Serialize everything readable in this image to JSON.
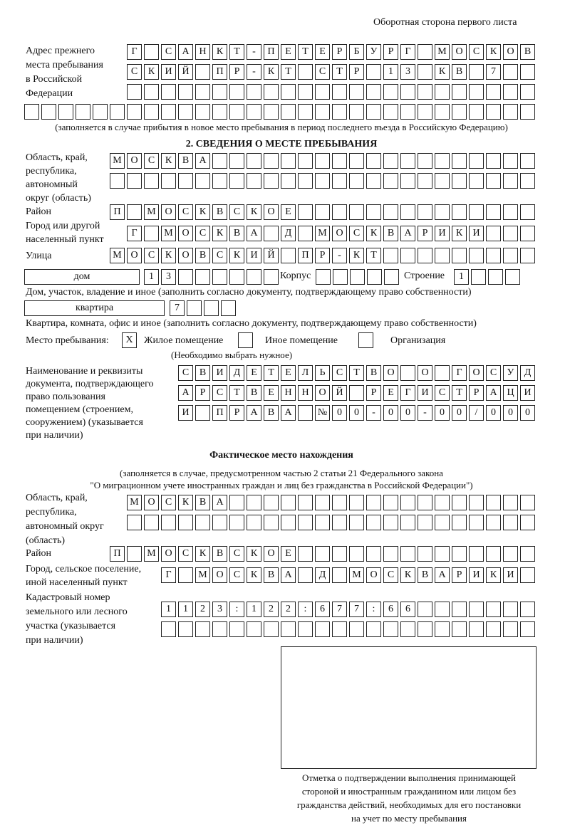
{
  "header": "Оборотная сторона первого листа",
  "prev_address": {
    "label": [
      "Адрес прежнего",
      "места пребывания",
      "в Российской",
      "Федерации"
    ],
    "rows": [
      [
        "Г",
        "",
        "С",
        "А",
        "Н",
        "К",
        "Т",
        "-",
        "П",
        "Е",
        "Т",
        "Е",
        "Р",
        "Б",
        "У",
        "Р",
        "Г",
        "",
        "М",
        "О",
        "С",
        "К",
        "О",
        "В"
      ],
      [
        "С",
        "К",
        "И",
        "Й",
        "",
        "П",
        "Р",
        "-",
        "К",
        "Т",
        "",
        "С",
        "Т",
        "Р",
        "",
        "1",
        "3",
        "",
        "К",
        "В",
        "",
        "7",
        "",
        ""
      ],
      [
        "",
        "",
        "",
        "",
        "",
        "",
        "",
        "",
        "",
        "",
        "",
        "",
        "",
        "",
        "",
        "",
        "",
        "",
        "",
        "",
        "",
        "",
        "",
        ""
      ],
      [
        "",
        "",
        "",
        "",
        "",
        "",
        "",
        "",
        "",
        "",
        "",
        "",
        "",
        "",
        "",
        "",
        "",
        "",
        "",
        "",
        "",
        "",
        "",
        "",
        "",
        "",
        "",
        "",
        "",
        ""
      ]
    ],
    "note": "(заполняется в случае прибытия в новое место пребывания в период последнего въезда в Российскую Федерацию)"
  },
  "section2": {
    "title": "2. СВЕДЕНИЯ О МЕСТЕ ПРЕБЫВАНИЯ",
    "region_label": [
      "Область, край,",
      "республика,",
      "автономный",
      "округ (область)"
    ],
    "region_rows": [
      [
        "М",
        "О",
        "С",
        "К",
        "В",
        "А",
        "",
        "",
        "",
        "",
        "",
        "",
        "",
        "",
        "",
        "",
        "",
        "",
        "",
        "",
        "",
        "",
        "",
        "",
        ""
      ],
      [
        "",
        "",
        "",
        "",
        "",
        "",
        "",
        "",
        "",
        "",
        "",
        "",
        "",
        "",
        "",
        "",
        "",
        "",
        "",
        "",
        "",
        "",
        "",
        "",
        ""
      ]
    ],
    "district_label": "Район",
    "district_row": [
      "П",
      "",
      "М",
      "О",
      "С",
      "К",
      "В",
      "С",
      "К",
      "О",
      "Е",
      "",
      "",
      "",
      "",
      "",
      "",
      "",
      "",
      "",
      "",
      "",
      "",
      "",
      ""
    ],
    "city_label": [
      "Город или другой",
      "населенный пункт"
    ],
    "city_row": [
      "Г",
      "",
      "М",
      "О",
      "С",
      "К",
      "В",
      "А",
      "",
      "Д",
      "",
      "М",
      "О",
      "С",
      "К",
      "В",
      "А",
      "Р",
      "И",
      "К",
      "И",
      "",
      "",
      ""
    ],
    "street_label": "Улица",
    "street_row": [
      "М",
      "О",
      "С",
      "К",
      "О",
      "В",
      "С",
      "К",
      "И",
      "Й",
      "",
      "П",
      "Р",
      "-",
      "К",
      "Т",
      "",
      "",
      "",
      "",
      "",
      "",
      "",
      "",
      ""
    ],
    "house_type": "дом",
    "house_cells": [
      "1",
      "3",
      "",
      "",
      "",
      "",
      "",
      ""
    ],
    "korpus_label": "Корпус",
    "korpus_cells": [
      "",
      "",
      "",
      "",
      ""
    ],
    "building_label": "Строение",
    "building_cells": [
      "1",
      "",
      "",
      ""
    ],
    "house_note": "Дом, участок, владение и иное (заполнить согласно документу, подтверждающему право собственности)",
    "apt_type": "квартира",
    "apt_cells": [
      "7",
      "",
      "",
      ""
    ],
    "apt_note": "Квартира, комната, офис и иное (заполнить согласно документу, подтверждающему право собственности)",
    "stay_label": "Место пребывания:",
    "stay_options": [
      {
        "mark": "X",
        "label": "Жилое помещение"
      },
      {
        "mark": "",
        "label": "Иное помещение"
      },
      {
        "mark": "",
        "label": "Организация"
      }
    ],
    "stay_note": "(Необходимо выбрать нужное)",
    "doc_label": [
      "Наименование и реквизиты",
      "документа, подтверждающего",
      "право пользования",
      "помещением (строением,",
      "сооружением) (указывается",
      "при наличии)"
    ],
    "doc_rows": [
      [
        "С",
        "В",
        "И",
        "Д",
        "Е",
        "Т",
        "Е",
        "Л",
        "Ь",
        "С",
        "Т",
        "В",
        "О",
        "",
        "О",
        "",
        "Г",
        "О",
        "С",
        "У",
        "Д"
      ],
      [
        "А",
        "Р",
        "С",
        "Т",
        "В",
        "Е",
        "Н",
        "Н",
        "О",
        "Й",
        "",
        "Р",
        "Е",
        "Г",
        "И",
        "С",
        "Т",
        "Р",
        "А",
        "Ц",
        "И"
      ],
      [
        "И",
        "",
        "П",
        "Р",
        "А",
        "В",
        "А",
        "",
        "№",
        "0",
        "0",
        "-",
        "0",
        "0",
        "-",
        "0",
        "0",
        "/",
        "0",
        "0",
        "0"
      ]
    ]
  },
  "actual": {
    "title": "Фактическое место нахождения",
    "note1": "(заполняется в случае, предусмотренном частью 2 статьи 21 Федерального закона",
    "note2": "\"О миграционном учете иностранных граждан и лиц без гражданства в Российской Федерации\")",
    "region_label": [
      "Область, край,",
      "республика,",
      "автономный округ",
      "(область)"
    ],
    "region_rows": [
      [
        "М",
        "О",
        "С",
        "К",
        "В",
        "А",
        "",
        "",
        "",
        "",
        "",
        "",
        "",
        "",
        "",
        "",
        "",
        "",
        "",
        "",
        "",
        "",
        "",
        ""
      ],
      [
        "",
        "",
        "",
        "",
        "",
        "",
        "",
        "",
        "",
        "",
        "",
        "",
        "",
        "",
        "",
        "",
        "",
        "",
        "",
        "",
        "",
        "",
        "",
        ""
      ]
    ],
    "district_label": "Район",
    "district_row": [
      "П",
      "",
      "М",
      "О",
      "С",
      "К",
      "В",
      "С",
      "К",
      "О",
      "Е",
      "",
      "",
      "",
      "",
      "",
      "",
      "",
      "",
      "",
      "",
      "",
      "",
      "",
      ""
    ],
    "city_label": [
      "Город, сельское поселение,",
      "иной населенный пункт"
    ],
    "city_row": [
      "Г",
      "",
      "М",
      "О",
      "С",
      "К",
      "В",
      "А",
      "",
      "Д",
      "",
      "М",
      "О",
      "С",
      "К",
      "В",
      "А",
      "Р",
      "И",
      "К",
      "И",
      ""
    ],
    "cadastral_label": [
      "Кадастровый номер",
      "земельного или лесного",
      "участка (указывается",
      "при наличии)"
    ],
    "cadastral_rows": [
      [
        "1",
        "1",
        "2",
        "3",
        ":",
        "1",
        "2",
        "2",
        ":",
        "6",
        "7",
        "7",
        ":",
        "6",
        "6",
        "",
        "",
        "",
        "",
        "",
        "",
        ""
      ],
      [
        "",
        "",
        "",
        "",
        "",
        "",
        "",
        "",
        "",
        "",
        "",
        "",
        "",
        "",
        "",
        "",
        "",
        "",
        "",
        "",
        "",
        ""
      ]
    ]
  },
  "stamp": {
    "caption": [
      "Отметка о подтверждении выполнения принимающей",
      "стороной и иностранным гражданином или лицом без",
      "гражданства действий, необходимых для его постановки",
      "на учет по месту пребывания"
    ]
  }
}
